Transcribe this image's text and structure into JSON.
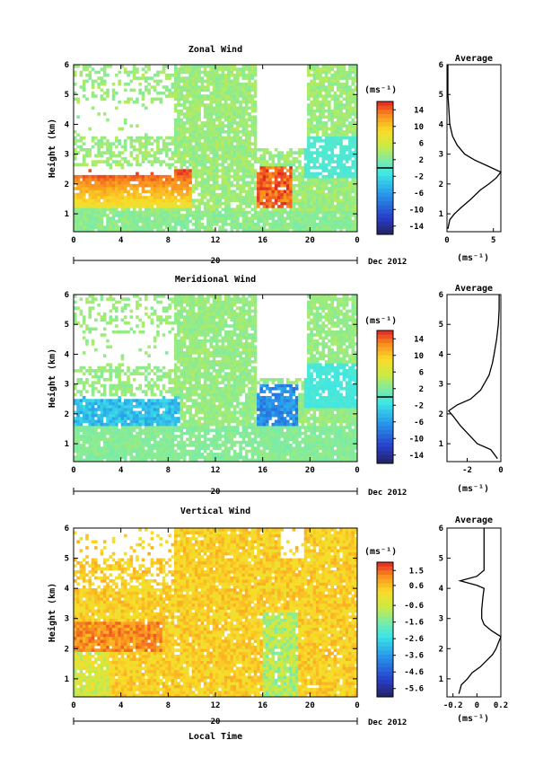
{
  "chart_data": [
    {
      "type": "heatmap",
      "title": "Zonal Wind",
      "ylabel": "Height (km)",
      "xlabel": "",
      "x_ticks": [
        "0",
        "4",
        "8",
        "12",
        "16",
        "20",
        "0"
      ],
      "y_ticks": [
        "1",
        "2",
        "3",
        "4",
        "5",
        "6"
      ],
      "xlim": [
        0,
        24
      ],
      "ylim": [
        0.4,
        6.0
      ],
      "date_day": "20",
      "date_month": "Dec 2012",
      "colorbar_unit": "(ms⁻¹)",
      "colorbar_ticks": [
        "14",
        "10",
        "6",
        "2",
        "-2",
        "-6",
        "-10",
        "-14"
      ],
      "colorbar_range": [
        -16,
        16
      ],
      "profile": {
        "title": "Average",
        "xlabel": "(ms⁻¹)",
        "x_ticks": [
          "0",
          "5"
        ],
        "xlim": [
          0,
          5.8
        ],
        "height": [
          0.5,
          0.8,
          1.0,
          1.2,
          1.5,
          1.8,
          2.0,
          2.2,
          2.4,
          2.6,
          2.8,
          3.0,
          3.3,
          3.6,
          4.0,
          4.5,
          5.0,
          5.5,
          6.0
        ],
        "value": [
          0.1,
          0.3,
          0.8,
          1.5,
          2.6,
          3.6,
          4.5,
          5.3,
          5.8,
          4.4,
          3.0,
          1.9,
          1.1,
          0.6,
          0.3,
          0.2,
          0.1,
          0.1,
          0.1
        ]
      }
    },
    {
      "type": "heatmap",
      "title": "Meridional Wind",
      "ylabel": "Height (km)",
      "xlabel": "",
      "x_ticks": [
        "0",
        "4",
        "8",
        "12",
        "16",
        "20",
        "0"
      ],
      "y_ticks": [
        "1",
        "2",
        "3",
        "4",
        "5",
        "6"
      ],
      "xlim": [
        0,
        24
      ],
      "ylim": [
        0.4,
        6.0
      ],
      "date_day": "20",
      "date_month": "Dec 2012",
      "colorbar_unit": "(ms⁻¹)",
      "colorbar_ticks": [
        "14",
        "10",
        "6",
        "2",
        "-2",
        "-6",
        "-10",
        "-14"
      ],
      "colorbar_range": [
        -16,
        16
      ],
      "profile": {
        "title": "Average",
        "xlabel": "(ms⁻¹)",
        "x_ticks": [
          "-2",
          "0"
        ],
        "xlim": [
          -3.2,
          0
        ],
        "height": [
          0.5,
          0.8,
          1.0,
          1.3,
          1.6,
          1.9,
          2.1,
          2.3,
          2.5,
          2.8,
          3.0,
          3.3,
          3.7,
          4.0,
          4.5,
          5.0,
          5.5,
          6.0
        ],
        "value": [
          -0.2,
          -0.6,
          -1.4,
          -1.9,
          -2.4,
          -2.8,
          -3.1,
          -2.6,
          -1.8,
          -1.2,
          -1.0,
          -0.7,
          -0.5,
          -0.4,
          -0.25,
          -0.15,
          -0.1,
          -0.1
        ]
      }
    },
    {
      "type": "heatmap",
      "title": "Vertical Wind",
      "ylabel": "Height (km)",
      "xlabel": "Local Time",
      "x_ticks": [
        "0",
        "4",
        "8",
        "12",
        "16",
        "20",
        "0"
      ],
      "y_ticks": [
        "1",
        "2",
        "3",
        "4",
        "5",
        "6"
      ],
      "xlim": [
        0,
        24
      ],
      "ylim": [
        0.4,
        6.0
      ],
      "date_day": "20",
      "date_month": "Dec 2012",
      "colorbar_unit": "(ms⁻¹)",
      "colorbar_ticks": [
        "1.5",
        "0.6",
        "-0.6",
        "-1.6",
        "-2.6",
        "-3.6",
        "-4.6",
        "-5.6"
      ],
      "colorbar_range": [
        -6.1,
        2.0
      ],
      "profile": {
        "title": "Average",
        "xlabel": "(ms⁻¹)",
        "x_ticks": [
          "-0.2",
          "0",
          "0.2"
        ],
        "xlim": [
          -0.25,
          0.2
        ],
        "height": [
          0.5,
          0.8,
          1.0,
          1.2,
          1.4,
          1.6,
          1.8,
          2.0,
          2.2,
          2.4,
          2.6,
          2.8,
          3.0,
          3.3,
          3.7,
          4.0,
          4.1,
          4.25,
          4.4,
          4.6,
          5.0,
          5.5,
          6.0
        ],
        "value": [
          -0.15,
          -0.13,
          -0.08,
          -0.04,
          0.03,
          0.08,
          0.13,
          0.16,
          0.18,
          0.2,
          0.12,
          0.06,
          0.04,
          0.04,
          0.05,
          0.06,
          0.0,
          -0.14,
          0.0,
          0.06,
          0.06,
          0.06,
          0.06
        ]
      }
    }
  ]
}
